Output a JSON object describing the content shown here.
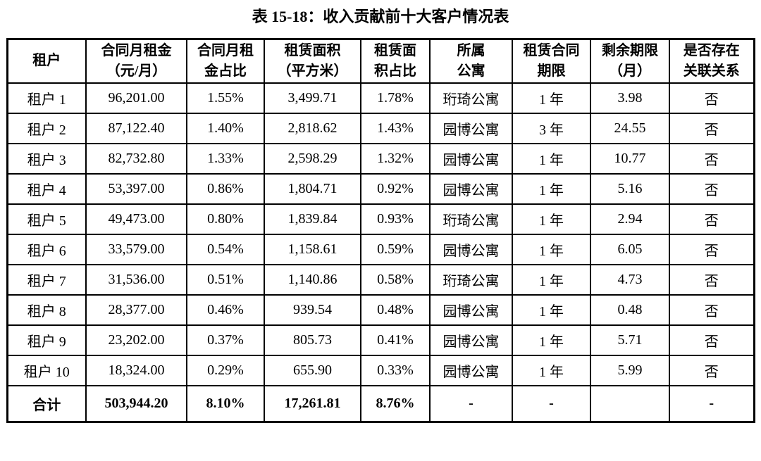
{
  "title": "表 15-18：收入贡献前十大客户情况表",
  "table": {
    "headers": [
      "租户",
      "合同月租金\n（元/月）",
      "合同月租\n金占比",
      "租赁面积\n（平方米）",
      "租赁面\n积占比",
      "所属\n公寓",
      "租赁合同\n期限",
      "剩余期限\n（月）",
      "是否存在\n关联关系"
    ],
    "rows": [
      [
        "租户 1",
        "96,201.00",
        "1.55%",
        "3,499.71",
        "1.78%",
        "珩琦公寓",
        "1 年",
        "3.98",
        "否"
      ],
      [
        "租户 2",
        "87,122.40",
        "1.40%",
        "2,818.62",
        "1.43%",
        "园博公寓",
        "3 年",
        "24.55",
        "否"
      ],
      [
        "租户 3",
        "82,732.80",
        "1.33%",
        "2,598.29",
        "1.32%",
        "园博公寓",
        "1 年",
        "10.77",
        "否"
      ],
      [
        "租户 4",
        "53,397.00",
        "0.86%",
        "1,804.71",
        "0.92%",
        "园博公寓",
        "1 年",
        "5.16",
        "否"
      ],
      [
        "租户 5",
        "49,473.00",
        "0.80%",
        "1,839.84",
        "0.93%",
        "珩琦公寓",
        "1 年",
        "2.94",
        "否"
      ],
      [
        "租户 6",
        "33,579.00",
        "0.54%",
        "1,158.61",
        "0.59%",
        "园博公寓",
        "1 年",
        "6.05",
        "否"
      ],
      [
        "租户 7",
        "31,536.00",
        "0.51%",
        "1,140.86",
        "0.58%",
        "珩琦公寓",
        "1 年",
        "4.73",
        "否"
      ],
      [
        "租户 8",
        "28,377.00",
        "0.46%",
        "939.54",
        "0.48%",
        "园博公寓",
        "1 年",
        "0.48",
        "否"
      ],
      [
        "租户 9",
        "23,202.00",
        "0.37%",
        "805.73",
        "0.41%",
        "园博公寓",
        "1 年",
        "5.71",
        "否"
      ],
      [
        "租户 10",
        "18,324.00",
        "0.29%",
        "655.90",
        "0.33%",
        "园博公寓",
        "1 年",
        "5.99",
        "否"
      ]
    ],
    "total_row": [
      "合计",
      "503,944.20",
      "8.10%",
      "17,261.81",
      "8.76%",
      "-",
      "-",
      "",
      "-"
    ]
  }
}
